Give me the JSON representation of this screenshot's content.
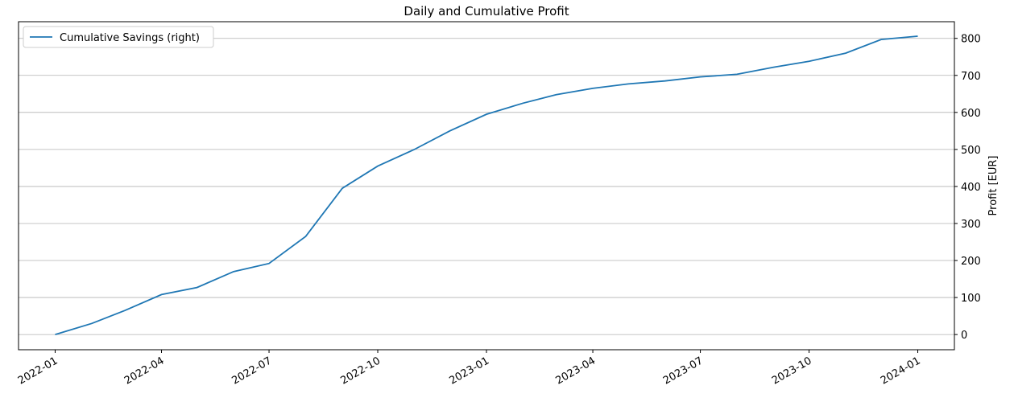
{
  "chart_data": {
    "type": "line",
    "title": "Daily and Cumulative Profit",
    "y_axis_label": "Profit [EUR]",
    "y_axis_side": "right",
    "x": [
      "2022-01",
      "2022-02",
      "2022-03",
      "2022-04",
      "2022-05",
      "2022-06",
      "2022-07",
      "2022-08",
      "2022-09",
      "2022-10",
      "2022-11",
      "2022-12",
      "2023-01",
      "2023-02",
      "2023-03",
      "2023-04",
      "2023-05",
      "2023-06",
      "2023-07",
      "2023-08",
      "2023-09",
      "2023-10",
      "2023-11",
      "2023-12",
      "2024-01"
    ],
    "series": [
      {
        "name": "Cumulative Savings (right)",
        "color": "#1f77b4",
        "axis": "y2",
        "values": [
          0,
          30,
          65,
          108,
          127,
          170,
          192,
          265,
          395,
          455,
          500,
          550,
          595,
          625,
          648,
          665,
          677,
          685,
          696,
          703,
          722,
          738,
          760,
          797,
          806
        ]
      }
    ],
    "xlim": [
      "2021-12",
      "2024-02"
    ],
    "xticks": [
      "2022-01",
      "2022-04",
      "2022-07",
      "2022-10",
      "2023-01",
      "2023-04",
      "2023-07",
      "2023-10",
      "2024-01"
    ],
    "y2lim": [
      -41,
      845
    ],
    "y2ticks": [
      0,
      100,
      200,
      300,
      400,
      500,
      600,
      700,
      800
    ],
    "grid": "y",
    "legend": "upper left"
  }
}
